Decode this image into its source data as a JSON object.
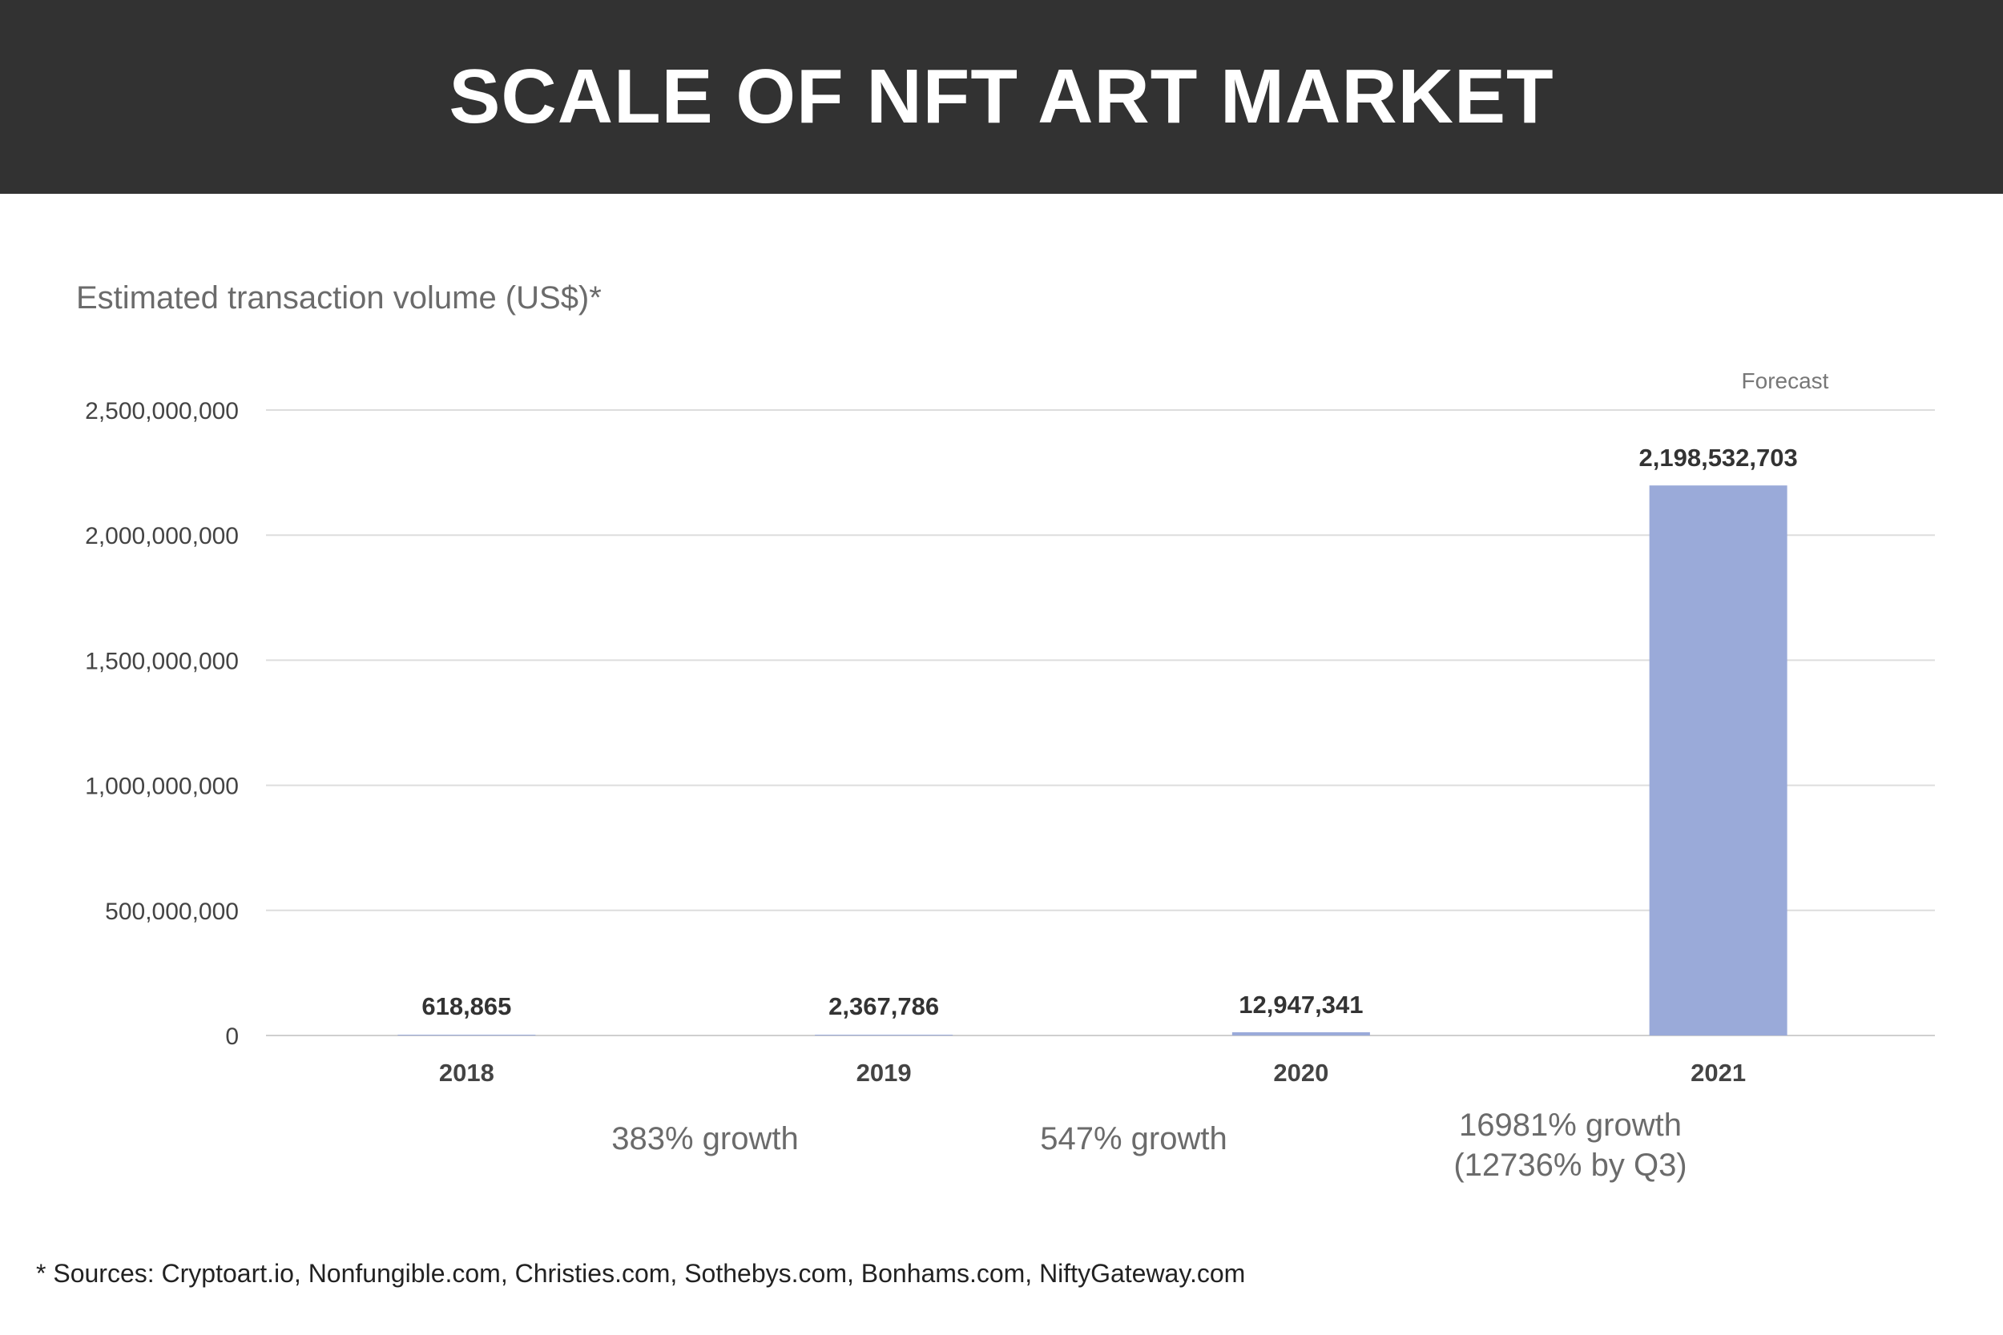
{
  "header": {
    "title": "SCALE OF NFT ART MARKET"
  },
  "chart_data": {
    "type": "bar",
    "title": "SCALE OF NFT ART MARKET",
    "ylabel": "Estimated transaction volume (US$)*",
    "xlabel": "",
    "categories": [
      "2018",
      "2019",
      "2020",
      "2021"
    ],
    "values": [
      618865,
      2367786,
      12947341,
      2198532703
    ],
    "value_labels": [
      "618,865",
      "2,367,786",
      "12,947,341",
      "2,198,532,703"
    ],
    "ylim": [
      0,
      2500000000
    ],
    "yticks": [
      0,
      500000000,
      1000000000,
      1500000000,
      2000000000,
      2500000000
    ],
    "ytick_labels": [
      "0",
      "500,000,000",
      "1,000,000,000",
      "1,500,000,000",
      "2,000,000,000",
      "2,500,000,000"
    ],
    "bar_color": "#9aaad9",
    "grid": true,
    "annotations": {
      "forecast": "Forecast",
      "growth": [
        "383% growth",
        "547% growth",
        "16981% growth",
        "(12736% by Q3)"
      ]
    }
  },
  "footer": {
    "sources": "* Sources: Cryptoart.io, Nonfungible.com, Christies.com, Sothebys.com, Bonhams.com, NiftyGateway.com"
  }
}
